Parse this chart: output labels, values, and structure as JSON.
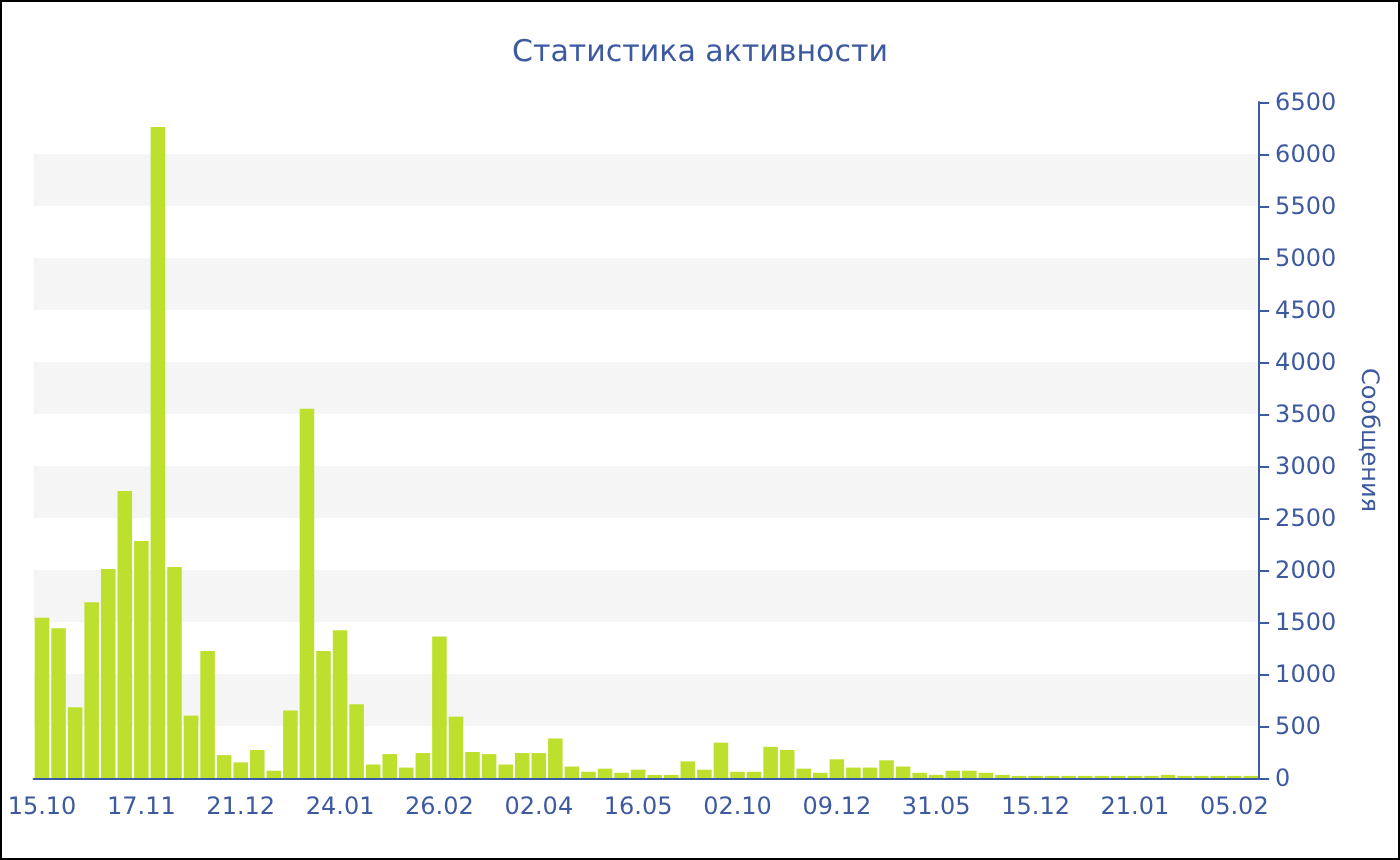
{
  "chart_data": {
    "type": "bar",
    "title": "Статистика активности",
    "ylabel": "Сообщения",
    "categories": [
      "15.10",
      null,
      null,
      null,
      null,
      null,
      "17.11",
      null,
      null,
      null,
      null,
      null,
      "21.12",
      null,
      null,
      null,
      null,
      null,
      "24.01",
      null,
      null,
      null,
      null,
      null,
      "26.02",
      null,
      null,
      null,
      null,
      null,
      "02.04",
      null,
      null,
      null,
      null,
      null,
      "16.05",
      null,
      null,
      null,
      null,
      null,
      "02.10",
      null,
      null,
      null,
      null,
      null,
      "09.12",
      null,
      null,
      null,
      null,
      null,
      "31.05",
      null,
      null,
      null,
      null,
      null,
      "15.12",
      null,
      null,
      null,
      null,
      null,
      "21.01",
      null,
      null,
      null,
      null,
      null,
      "05.02",
      null
    ],
    "values": [
      1540,
      1440,
      680,
      1690,
      2010,
      2760,
      2280,
      6260,
      2030,
      600,
      1220,
      220,
      150,
      270,
      70,
      650,
      3550,
      1220,
      1420,
      710,
      130,
      230,
      100,
      240,
      1360,
      590,
      250,
      230,
      130,
      240,
      240,
      380,
      110,
      60,
      90,
      50,
      80,
      30,
      30,
      160,
      80,
      340,
      60,
      60,
      300,
      270,
      90,
      50,
      180,
      100,
      100,
      170,
      110,
      50,
      30,
      70,
      70,
      50,
      30,
      20,
      20,
      20,
      20,
      20,
      20,
      20,
      20,
      20,
      30,
      20,
      20,
      20,
      20,
      20
    ],
    "color": "#bde02f",
    "ylim": [
      0,
      6500
    ],
    "yticks": [
      0,
      500,
      1000,
      1500,
      2000,
      2500,
      3000,
      3500,
      4000,
      4500,
      5000,
      5500,
      6000,
      6500
    ],
    "grid": false
  }
}
